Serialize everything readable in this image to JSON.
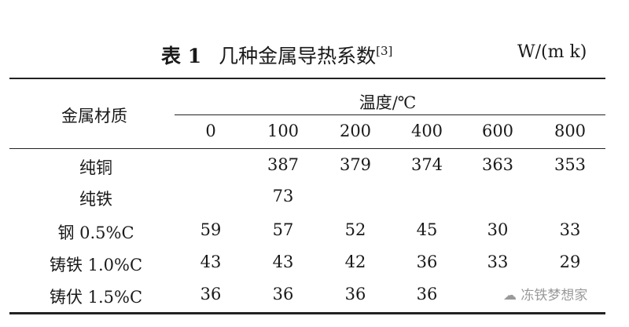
{
  "title": {
    "label": "表 1",
    "text": "几种金属导热系数",
    "ref": "[3]",
    "unit": "W/(m k)"
  },
  "table": {
    "row_header": "金属材质",
    "group_header": "温度/℃",
    "columns": [
      "0",
      "100",
      "200",
      "400",
      "600",
      "800"
    ],
    "rows": [
      {
        "label": "纯铜",
        "values": [
          "",
          "387",
          "379",
          "374",
          "363",
          "353"
        ]
      },
      {
        "label": "纯铁",
        "values": [
          "",
          "73",
          "",
          "",
          "",
          ""
        ]
      },
      {
        "label": "钢 0.5%C",
        "values": [
          "59",
          "57",
          "52",
          "45",
          "30",
          "33"
        ]
      },
      {
        "label": "铸铁 1.0%C",
        "values": [
          "43",
          "43",
          "42",
          "36",
          "33",
          "29"
        ]
      },
      {
        "label": "铸伏 1.5%C",
        "values": [
          "36",
          "36",
          "36",
          "36",
          "",
          ""
        ]
      }
    ]
  },
  "watermark": {
    "text": "冻铁梦想家",
    "icon": "wechat-icon"
  }
}
